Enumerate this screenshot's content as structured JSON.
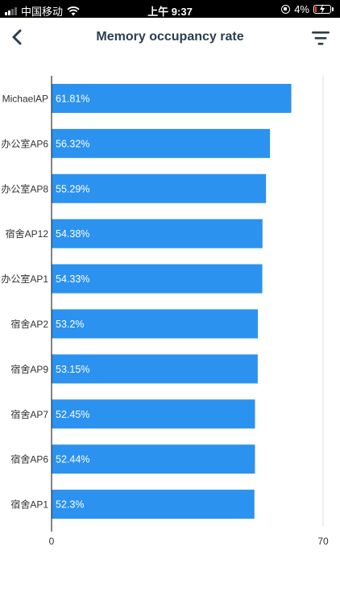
{
  "status_bar": {
    "carrier": "中国移动",
    "time": "上午 9:37",
    "battery": "4%",
    "icons": [
      "signal-icon",
      "wifi-icon",
      "orientation-lock-icon",
      "battery-icon"
    ]
  },
  "header": {
    "title": "Memory occupancy rate",
    "back_icon": "chevron-left-icon",
    "filter_icon": "filter-icon"
  },
  "colors": {
    "bar": "#2b92f0",
    "bar_label": "#ffffff",
    "axis": "#333333",
    "grid": "#dddddd",
    "title": "#2c3e50"
  },
  "chart_data": {
    "type": "bar",
    "orientation": "horizontal",
    "title": "",
    "xlabel": "",
    "ylabel": "",
    "xlim": [
      0,
      70
    ],
    "x_ticks": [
      "0",
      "70"
    ],
    "categories": [
      "MichaelAP",
      "办公室AP6",
      "办公室AP8",
      "宿舍AP12",
      "办公室AP1",
      "宿舍AP2",
      "宿舍AP9",
      "宿舍AP7",
      "宿舍AP6",
      "宿舍AP1"
    ],
    "values": [
      61.81,
      56.32,
      55.29,
      54.38,
      54.33,
      53.2,
      53.15,
      52.45,
      52.44,
      52.3
    ],
    "labels": [
      "61.81%",
      "56.32%",
      "55.29%",
      "54.38%",
      "54.33%",
      "53.2%",
      "53.15%",
      "52.45%",
      "52.44%",
      "52.3%"
    ],
    "grid": true,
    "legend": "none"
  }
}
